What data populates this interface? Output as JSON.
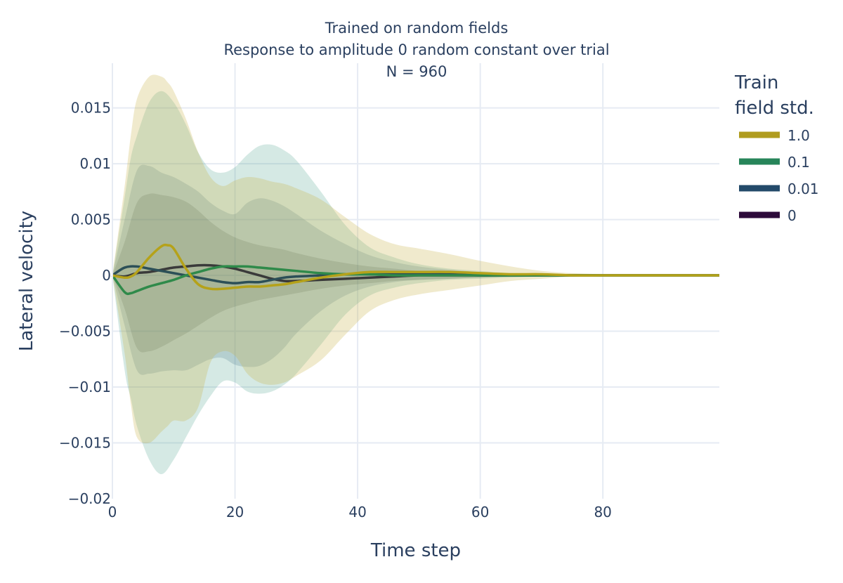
{
  "chart_data": {
    "type": "line",
    "title_lines": [
      "Trained on random fields",
      "Response to amplitude 0 random constant over trial",
      "N = 960"
    ],
    "xlabel": "Time step",
    "ylabel": "Lateral velocity",
    "xlim": [
      0,
      99
    ],
    "ylim": [
      -0.02,
      0.019
    ],
    "xticks": [
      0,
      20,
      40,
      60,
      80
    ],
    "xtick_labels": [
      "0",
      "20",
      "40",
      "60",
      "80"
    ],
    "yticks": [
      -0.02,
      -0.015,
      -0.01,
      -0.005,
      0,
      0.005,
      0.01,
      0.015
    ],
    "ytick_labels": [
      "−0.02",
      "−0.015",
      "−0.01",
      "−0.005",
      "0",
      "0.005",
      "0.01",
      "0.015"
    ],
    "grid": true,
    "legend": {
      "title_lines": [
        "Train",
        "field std."
      ],
      "placement": "right"
    },
    "series": [
      {
        "name": "0",
        "color": "#2d0a3a",
        "band_color": "#000000",
        "band_opacity": 0.15,
        "mean_color": "#3a3a3a",
        "x": [
          0,
          2,
          4,
          6,
          8,
          10,
          12,
          14,
          16,
          18,
          20,
          22,
          24,
          26,
          28,
          30,
          34,
          38,
          42,
          46,
          50,
          55,
          60,
          65,
          70,
          75,
          80,
          85,
          90,
          95,
          99
        ],
        "mean": [
          0,
          -0.0001,
          0.0002,
          0.0003,
          0.0005,
          0.0007,
          0.0008,
          0.0009,
          0.0009,
          0.0008,
          0.0006,
          0.0003,
          0.0,
          -0.0003,
          -0.0005,
          -0.0005,
          -0.0004,
          -0.0003,
          -0.0002,
          -0.0001,
          0.0,
          0.0,
          0.0,
          0.0,
          0.0,
          0.0,
          0.0,
          0.0,
          0.0,
          0.0,
          0.0
        ],
        "upper": [
          0,
          0.003,
          0.0065,
          0.0073,
          0.0072,
          0.007,
          0.0066,
          0.0058,
          0.0048,
          0.004,
          0.0034,
          0.003,
          0.0027,
          0.0025,
          0.0023,
          0.002,
          0.0015,
          0.0011,
          0.0008,
          0.0006,
          0.0004,
          0.0003,
          0.0002,
          0.0001,
          0.0001,
          0.0,
          0.0,
          0.0,
          0.0,
          0.0,
          0.0
        ],
        "lower": [
          0,
          -0.003,
          -0.0065,
          -0.0068,
          -0.0064,
          -0.0058,
          -0.0052,
          -0.0045,
          -0.0038,
          -0.0032,
          -0.0028,
          -0.0025,
          -0.0022,
          -0.002,
          -0.0018,
          -0.0016,
          -0.0012,
          -0.0009,
          -0.0007,
          -0.0005,
          -0.0004,
          -0.0003,
          -0.0002,
          -0.0001,
          -0.0001,
          0.0,
          0.0,
          0.0,
          0.0,
          0.0,
          0.0
        ]
      },
      {
        "name": "0.01",
        "color": "#234a6a",
        "band_color": "#234a6a",
        "band_opacity": 0.18,
        "mean_color": "#2c4f57",
        "x": [
          0,
          2,
          4,
          6,
          8,
          10,
          12,
          14,
          16,
          18,
          20,
          22,
          24,
          26,
          28,
          30,
          34,
          38,
          42,
          46,
          50,
          55,
          60,
          65,
          70,
          75,
          80,
          85,
          90,
          95,
          99
        ],
        "mean": [
          0,
          0.0007,
          0.0008,
          0.0006,
          0.0004,
          0.0002,
          0.0,
          -0.0002,
          -0.0004,
          -0.0006,
          -0.0007,
          -0.0006,
          -0.0006,
          -0.0004,
          -0.0002,
          -0.0001,
          0.0,
          0.0001,
          0.0001,
          0.0001,
          0.0001,
          0.0001,
          0.0,
          0.0,
          0.0,
          0.0,
          0.0,
          0.0,
          0.0,
          0.0,
          0.0
        ],
        "upper": [
          0,
          0.005,
          0.0094,
          0.0098,
          0.0092,
          0.0088,
          0.0082,
          0.0075,
          0.0065,
          0.0058,
          0.0055,
          0.0065,
          0.0069,
          0.0067,
          0.0062,
          0.0055,
          0.004,
          0.0028,
          0.0018,
          0.0012,
          0.0008,
          0.0005,
          0.0003,
          0.0002,
          0.0001,
          0.0,
          0.0,
          0.0,
          0.0,
          0.0,
          0.0
        ],
        "lower": [
          0,
          -0.0045,
          -0.0085,
          -0.0088,
          -0.0086,
          -0.0085,
          -0.0085,
          -0.008,
          -0.0075,
          -0.0074,
          -0.008,
          -0.0082,
          -0.0081,
          -0.0075,
          -0.0065,
          -0.0052,
          -0.0032,
          -0.0018,
          -0.001,
          -0.0006,
          -0.0004,
          -0.0003,
          -0.0002,
          -0.0001,
          0.0,
          0.0,
          0.0,
          0.0,
          0.0,
          0.0,
          0.0
        ]
      },
      {
        "name": "0.1",
        "color": "#27855a",
        "band_color": "#3f9a86",
        "band_opacity": 0.22,
        "mean_color": "#2f8a4a",
        "x": [
          0,
          2,
          3,
          4,
          6,
          8,
          10,
          12,
          14,
          16,
          18,
          20,
          22,
          24,
          26,
          28,
          30,
          34,
          38,
          42,
          46,
          50,
          55,
          60,
          65,
          70,
          75,
          80,
          85,
          90,
          95,
          99
        ],
        "mean": [
          0,
          -0.0015,
          -0.0016,
          -0.0014,
          -0.001,
          -0.0007,
          -0.0004,
          0.0,
          0.0003,
          0.0006,
          0.0008,
          0.0008,
          0.0008,
          0.0007,
          0.0006,
          0.0005,
          0.0004,
          0.0002,
          0.0001,
          0.0001,
          0.0,
          0.0,
          0.0,
          0.0,
          0.0,
          0.0,
          0.0,
          0.0,
          0.0,
          0.0,
          0.0,
          0.0
        ],
        "upper": [
          0,
          0.007,
          0.0105,
          0.0125,
          0.0155,
          0.0165,
          0.0155,
          0.0135,
          0.011,
          0.0095,
          0.0092,
          0.0097,
          0.0108,
          0.0116,
          0.0117,
          0.0112,
          0.0103,
          0.0075,
          0.0045,
          0.0025,
          0.0016,
          0.001,
          0.0006,
          0.0004,
          0.0002,
          0.0001,
          0.0,
          0.0,
          0.0,
          0.0,
          0.0,
          0.0
        ],
        "lower": [
          0,
          -0.0085,
          -0.011,
          -0.0135,
          -0.0165,
          -0.0178,
          -0.0165,
          -0.0145,
          -0.0125,
          -0.0108,
          -0.0095,
          -0.0096,
          -0.0104,
          -0.0106,
          -0.0104,
          -0.0098,
          -0.0088,
          -0.0062,
          -0.0035,
          -0.0018,
          -0.0011,
          -0.0007,
          -0.0004,
          -0.0003,
          -0.0002,
          -0.0001,
          0.0,
          0.0,
          0.0,
          0.0,
          0.0,
          0.0
        ]
      },
      {
        "name": "1.0",
        "color": "#b09c1e",
        "band_color": "#c8b24a",
        "band_opacity": 0.28,
        "mean_color": "#b5a21a",
        "x": [
          0,
          2,
          3,
          4,
          6,
          8,
          9,
          10,
          12,
          14,
          16,
          18,
          20,
          22,
          24,
          26,
          28,
          30,
          34,
          38,
          42,
          46,
          50,
          55,
          60,
          65,
          70,
          75,
          80,
          85,
          90,
          95,
          99
        ],
        "mean": [
          0,
          -0.0002,
          -0.0001,
          0.0003,
          0.0016,
          0.0026,
          0.0027,
          0.0024,
          0.0006,
          -0.0008,
          -0.0012,
          -0.0012,
          -0.0011,
          -0.001,
          -0.001,
          -0.0009,
          -0.0008,
          -0.0006,
          -0.0002,
          0.0001,
          0.0003,
          0.0003,
          0.0003,
          0.0003,
          0.0002,
          0.0001,
          0.0001,
          0.0,
          0.0,
          0.0,
          0.0,
          0.0,
          0.0
        ],
        "upper": [
          0,
          0.008,
          0.0125,
          0.0158,
          0.0178,
          0.0178,
          0.0173,
          0.0165,
          0.014,
          0.011,
          0.0088,
          0.008,
          0.0085,
          0.0088,
          0.0087,
          0.0084,
          0.0082,
          0.0078,
          0.0068,
          0.0052,
          0.0037,
          0.0028,
          0.0024,
          0.0019,
          0.0013,
          0.0008,
          0.0004,
          0.0002,
          0.0001,
          0.0,
          0.0,
          0.0,
          0.0
        ],
        "lower": [
          0,
          -0.007,
          -0.0115,
          -0.0145,
          -0.015,
          -0.014,
          -0.0135,
          -0.013,
          -0.013,
          -0.0118,
          -0.0078,
          -0.0068,
          -0.0072,
          -0.0088,
          -0.0096,
          -0.0098,
          -0.0096,
          -0.009,
          -0.0076,
          -0.0053,
          -0.0032,
          -0.0022,
          -0.0017,
          -0.0013,
          -0.0009,
          -0.0005,
          -0.0003,
          -0.0001,
          0.0,
          0.0,
          0.0,
          0.0,
          0.0
        ]
      }
    ],
    "legend_order": [
      "1.0",
      "0.1",
      "0.01",
      "0"
    ]
  }
}
